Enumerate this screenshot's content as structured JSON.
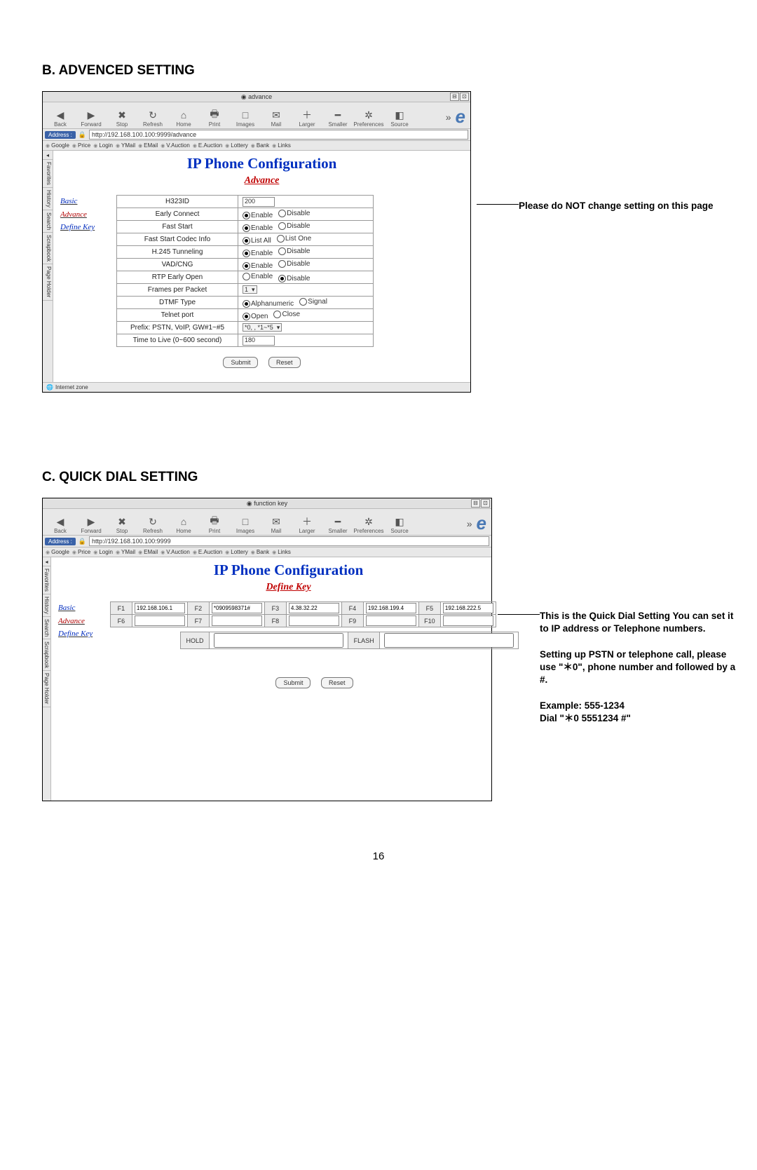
{
  "section_b_title": "B. ADVENCED SETTING",
  "section_c_title": "C. QUICK DIAL SETTING",
  "page_number": "16",
  "anno_b": "Please do NOT change setting on this page",
  "anno_c": "This is the Quick Dial Setting You can set it to IP address or Telephone numbers.\n\nSetting up PSTN or telephone call, please use \"＊0\", phone number and followed by a #.\n\nExample: 555-1234\nDial \"＊0 5551234 #\"",
  "browser_common": {
    "toolbar": [
      "Back",
      "Forward",
      "Stop",
      "Refresh",
      "Home",
      "Print",
      "Images",
      "Mail",
      "Larger",
      "Smaller",
      "Preferences",
      "Source"
    ],
    "toolbar_icons": [
      "◀",
      "▶",
      "✖",
      "↻",
      "⌂",
      "🖶",
      "□",
      "✉",
      "＋",
      "━",
      "✲",
      "◧"
    ],
    "more": "»",
    "ie": "e",
    "addr_label": "Address :",
    "bookmarks": [
      "Google",
      "Price",
      "Login",
      "YMail",
      "EMail",
      "V.Auction",
      "E.Auction",
      "Lottery",
      "Bank",
      "Links"
    ],
    "side_tabs": [
      "Favorites",
      "History",
      "Search",
      "Scrapbook",
      "Page Holder"
    ],
    "nav": {
      "basic": "Basic",
      "advance": "Advance",
      "define": "Define Key"
    },
    "h1": "IP Phone Configuration",
    "submit": "Submit",
    "reset": "Reset",
    "status": "Internet zone"
  },
  "advance": {
    "win_title": "advance",
    "url": "http://192.168.100.100:9999/advance",
    "subtitle": "Advance",
    "rows": [
      {
        "label": "H323ID",
        "type": "text",
        "value": "200"
      },
      {
        "label": "Early Connect",
        "type": "radio",
        "opts": [
          "Enable",
          "Disable"
        ],
        "sel": 0
      },
      {
        "label": "Fast Start",
        "type": "radio",
        "opts": [
          "Enable",
          "Disable"
        ],
        "sel": 0
      },
      {
        "label": "Fast Start Codec Info",
        "type": "radio",
        "opts": [
          "List All",
          "List One"
        ],
        "sel": 0
      },
      {
        "label": "H.245 Tunneling",
        "type": "radio",
        "opts": [
          "Enable",
          "Disable"
        ],
        "sel": 0
      },
      {
        "label": "VAD/CNG",
        "type": "radio",
        "opts": [
          "Enable",
          "Disable"
        ],
        "sel": 0
      },
      {
        "label": "RTP Early Open",
        "type": "radio",
        "opts": [
          "Enable",
          "Disable"
        ],
        "sel": 1
      },
      {
        "label": "Frames per Packet",
        "type": "select",
        "value": "1"
      },
      {
        "label": "DTMF Type",
        "type": "radio",
        "opts": [
          "Alphanumeric",
          "Signal"
        ],
        "sel": 0
      },
      {
        "label": "Telnet port",
        "type": "radio",
        "opts": [
          "Open",
          "Close"
        ],
        "sel": 0
      },
      {
        "label": "Prefix: PSTN, VoIP, GW#1~#5",
        "type": "select",
        "value": "*0, <null>, *1~*5"
      },
      {
        "label": "Time to Live (0~600 second)",
        "type": "text",
        "value": "180"
      }
    ]
  },
  "define": {
    "win_title": "function key",
    "url": "http://192.168.100.100:9999",
    "subtitle": "Define Key",
    "fkeys": [
      {
        "k": "F1",
        "v": "192.168.106.1"
      },
      {
        "k": "F2",
        "v": "*0909598371#"
      },
      {
        "k": "F3",
        "v": "4.38.32.22"
      },
      {
        "k": "F4",
        "v": "192.168.199.4"
      },
      {
        "k": "F5",
        "v": "192.168.222.5"
      },
      {
        "k": "F6",
        "v": ""
      },
      {
        "k": "F7",
        "v": ""
      },
      {
        "k": "F8",
        "v": ""
      },
      {
        "k": "F9",
        "v": ""
      },
      {
        "k": "F10",
        "v": ""
      }
    ],
    "hold": "HOLD",
    "hold_v": "",
    "flash": "FLASH",
    "flash_v": ""
  },
  "colors": {
    "title_blue": "#0030c0",
    "title_red": "#c00000",
    "addr_blue": "#3a62a8"
  }
}
